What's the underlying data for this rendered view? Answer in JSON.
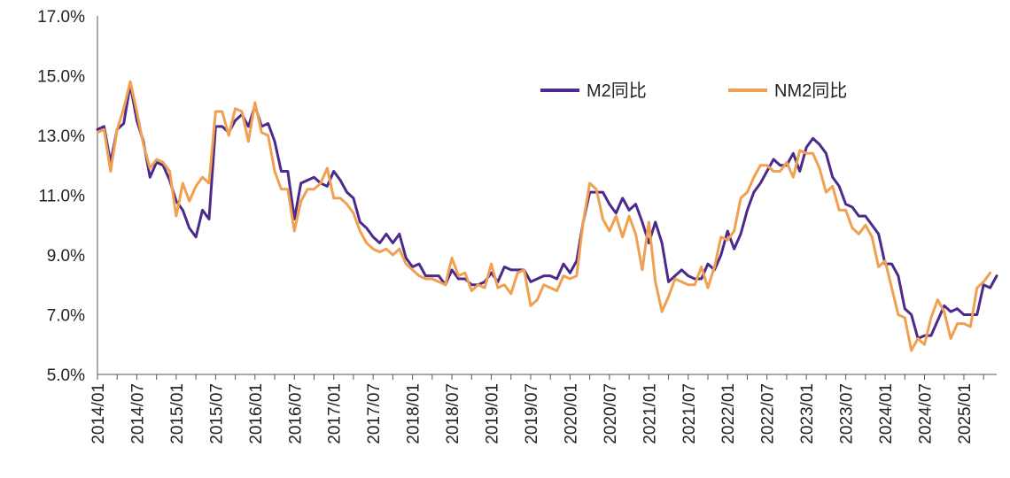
{
  "chart_data": {
    "type": "line",
    "title": "",
    "xlabel": "",
    "ylabel": "",
    "ylim": [
      5.0,
      17.0
    ],
    "y_ticks": [
      "5.0%",
      "7.0%",
      "9.0%",
      "11.0%",
      "13.0%",
      "15.0%",
      "17.0%"
    ],
    "x_ticks": [
      "2014/01",
      "2014/07",
      "2015/01",
      "2015/07",
      "2016/01",
      "2016/07",
      "2017/01",
      "2017/07",
      "2018/01",
      "2018/07",
      "2019/01",
      "2019/07",
      "2020/01",
      "2020/07",
      "2021/01",
      "2021/07",
      "2022/01",
      "2022/07",
      "2023/01",
      "2023/07",
      "2024/01",
      "2024/07",
      "2025/01"
    ],
    "x_start": "2014/01",
    "grid": false,
    "legend_position": "top-right",
    "series": [
      {
        "name": "M2同比",
        "color": "#4B2A8C",
        "values": [
          13.2,
          13.3,
          12.1,
          13.2,
          13.4,
          14.7,
          13.5,
          12.8,
          11.6,
          12.1,
          12.0,
          11.5,
          10.8,
          10.5,
          9.9,
          9.6,
          10.5,
          10.2,
          13.3,
          13.3,
          13.1,
          13.5,
          13.7,
          13.3,
          14.0,
          13.3,
          13.4,
          12.8,
          11.8,
          11.8,
          10.2,
          11.4,
          11.5,
          11.6,
          11.4,
          11.3,
          11.8,
          11.5,
          11.1,
          10.9,
          10.1,
          9.9,
          9.6,
          9.4,
          9.7,
          9.4,
          9.7,
          8.9,
          8.6,
          8.7,
          8.3,
          8.3,
          8.3,
          8.0,
          8.5,
          8.2,
          8.2,
          8.0,
          8.0,
          8.1,
          8.4,
          8.1,
          8.6,
          8.5,
          8.5,
          8.5,
          8.1,
          8.2,
          8.3,
          8.3,
          8.2,
          8.7,
          8.4,
          8.8,
          10.1,
          11.1,
          11.1,
          11.1,
          10.7,
          10.4,
          10.9,
          10.5,
          10.7,
          10.1,
          9.4,
          10.1,
          9.4,
          8.1,
          8.3,
          8.5,
          8.3,
          8.2,
          8.2,
          8.7,
          8.5,
          9.0,
          9.8,
          9.2,
          9.7,
          10.5,
          11.1,
          11.4,
          11.8,
          12.2,
          12.0,
          12.0,
          12.4,
          11.8,
          12.6,
          12.9,
          12.7,
          12.4,
          11.6,
          11.3,
          10.7,
          10.6,
          10.3,
          10.3,
          10.0,
          9.7,
          8.7,
          8.7,
          8.3,
          7.2,
          7.0,
          6.2,
          6.3,
          6.3,
          6.8,
          7.3,
          7.1,
          7.2,
          7.0,
          7.0,
          7.0,
          8.0,
          7.9,
          8.3
        ]
      },
      {
        "name": "NM2同比",
        "color": "#F0A050",
        "values": [
          13.1,
          13.2,
          11.8,
          13.2,
          13.9,
          14.8,
          13.8,
          12.7,
          11.9,
          12.2,
          12.1,
          11.8,
          10.3,
          11.4,
          10.8,
          11.3,
          11.6,
          11.4,
          13.8,
          13.8,
          13.0,
          13.9,
          13.8,
          12.8,
          14.1,
          13.1,
          13.0,
          11.8,
          11.2,
          11.2,
          9.8,
          10.8,
          11.2,
          11.2,
          11.4,
          11.9,
          10.9,
          10.9,
          10.7,
          10.4,
          9.8,
          9.4,
          9.2,
          9.1,
          9.2,
          9.0,
          9.2,
          8.7,
          8.5,
          8.3,
          8.2,
          8.2,
          8.1,
          8.0,
          8.9,
          8.3,
          8.4,
          7.8,
          8.0,
          7.9,
          8.7,
          7.9,
          8.0,
          7.7,
          8.4,
          8.5,
          7.3,
          7.5,
          8.0,
          7.9,
          7.8,
          8.3,
          8.2,
          8.3,
          10.1,
          11.4,
          11.2,
          10.2,
          9.8,
          10.3,
          9.6,
          10.3,
          9.7,
          8.5,
          10.1,
          8.1,
          7.1,
          7.6,
          8.2,
          8.1,
          8.0,
          8.0,
          8.6,
          7.9,
          8.6,
          9.6,
          9.5,
          9.8,
          10.9,
          11.1,
          11.6,
          12.0,
          12.0,
          11.8,
          11.8,
          12.1,
          11.6,
          12.5,
          12.4,
          12.4,
          11.9,
          11.1,
          11.3,
          10.5,
          10.5,
          9.9,
          9.7,
          10.0,
          9.6,
          8.6,
          8.8,
          7.9,
          7.0,
          6.9,
          5.8,
          6.2,
          6.0,
          6.9,
          7.5,
          7.1,
          6.2,
          6.7,
          6.7,
          6.6,
          7.9,
          8.1,
          8.4
        ]
      }
    ]
  }
}
